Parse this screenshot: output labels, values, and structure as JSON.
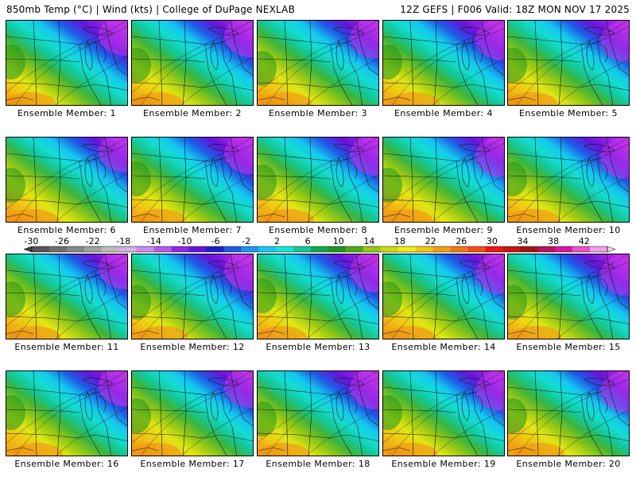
{
  "header": {
    "left": "850mb Temp (°C) | Wind (kts) | College of DuPage NEXLAB",
    "right": "12Z GEFS | F006 Valid: 18Z MON NOV 17 2025"
  },
  "members": [
    {
      "label": "Ensemble Member: 1"
    },
    {
      "label": "Ensemble Member: 2"
    },
    {
      "label": "Ensemble Member: 3"
    },
    {
      "label": "Ensemble Member: 4"
    },
    {
      "label": "Ensemble Member: 5"
    },
    {
      "label": "Ensemble Member: 6"
    },
    {
      "label": "Ensemble Member: 7"
    },
    {
      "label": "Ensemble Member: 8"
    },
    {
      "label": "Ensemble Member: 9"
    },
    {
      "label": "Ensemble Member: 10"
    },
    {
      "label": "Ensemble Member: 11"
    },
    {
      "label": "Ensemble Member: 12"
    },
    {
      "label": "Ensemble Member: 13"
    },
    {
      "label": "Ensemble Member: 14"
    },
    {
      "label": "Ensemble Member: 15"
    },
    {
      "label": "Ensemble Member: 16"
    },
    {
      "label": "Ensemble Member: 17"
    },
    {
      "label": "Ensemble Member: 18"
    },
    {
      "label": "Ensemble Member: 19"
    },
    {
      "label": "Ensemble Member: 20"
    }
  ],
  "colorbar": {
    "ticks": [
      "-30",
      "-26",
      "-22",
      "-18",
      "-14",
      "-10",
      "-6",
      "-2",
      "2",
      "6",
      "10",
      "14",
      "18",
      "22",
      "26",
      "30",
      "34",
      "38",
      "42"
    ],
    "colors": [
      "#555555",
      "#6e6e6e",
      "#888888",
      "#a2a2a2",
      "#bcbcbc",
      "#d2b4e6",
      "#c88cf0",
      "#b45af0",
      "#8c28e6",
      "#6414dc",
      "#1e1ecc",
      "#1e5ae6",
      "#1e96f0",
      "#14c8f0",
      "#14e6d2",
      "#14c896",
      "#0aaa50",
      "#1e961e",
      "#50aa14",
      "#96c814",
      "#c8dc14",
      "#f0f014",
      "#f0c814",
      "#f0a014",
      "#f07814",
      "#f05014",
      "#f01414",
      "#c81414",
      "#a01414",
      "#b4145a",
      "#dc14a0",
      "#f050c8",
      "#f0a0e6"
    ]
  }
}
